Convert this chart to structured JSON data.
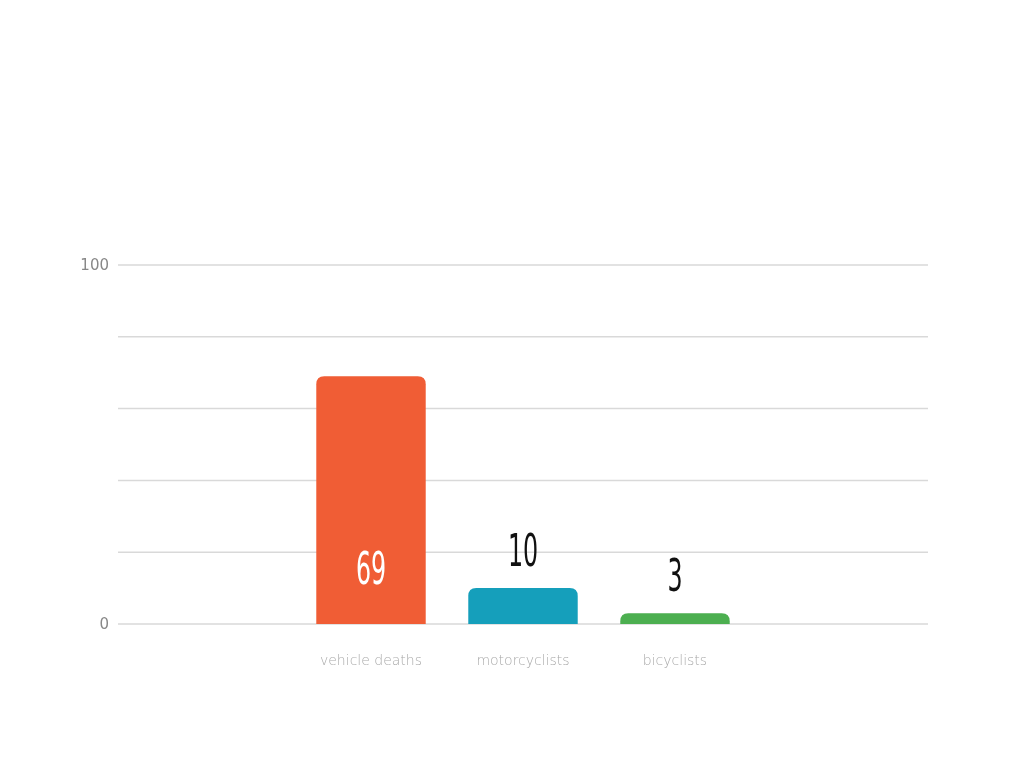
{
  "chart_data": {
    "type": "bar",
    "categories": [
      "vehicle deaths",
      "motorcyclists",
      "bicyclists"
    ],
    "values": [
      69,
      10,
      3
    ],
    "colors": [
      "#f05d35",
      "#159fbb",
      "#4caf50"
    ],
    "ylim": [
      0,
      100
    ],
    "yticks": [
      0,
      {
        "value": 20,
        "label": null
      },
      {
        "value": 40,
        "label": null
      },
      {
        "value": 60,
        "label": null
      },
      {
        "value": 80,
        "label": null
      },
      100
    ],
    "grid": "y",
    "data_labels": true
  }
}
